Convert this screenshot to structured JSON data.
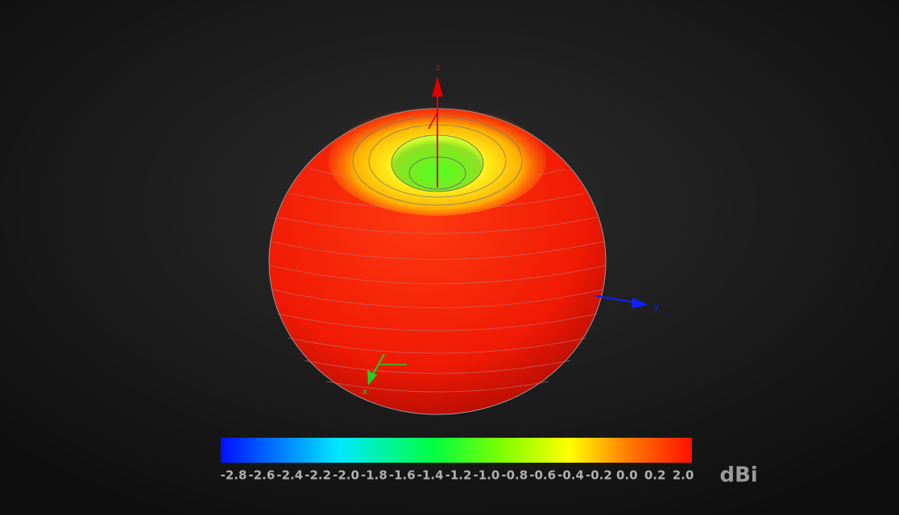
{
  "axes": {
    "z": "z",
    "y": "y",
    "x": "x"
  },
  "colorbar": {
    "ticks": [
      "-2.8",
      "-2.6",
      "-2.4",
      "-2.2",
      "-2.0",
      "-1.8",
      "-1.6",
      "-1.4",
      "-1.2",
      "-1.0",
      "-0.8",
      "-0.6",
      "-0.4",
      "-0.2",
      "0.0",
      "0.2",
      "2.0"
    ],
    "unit": "dBi"
  }
}
